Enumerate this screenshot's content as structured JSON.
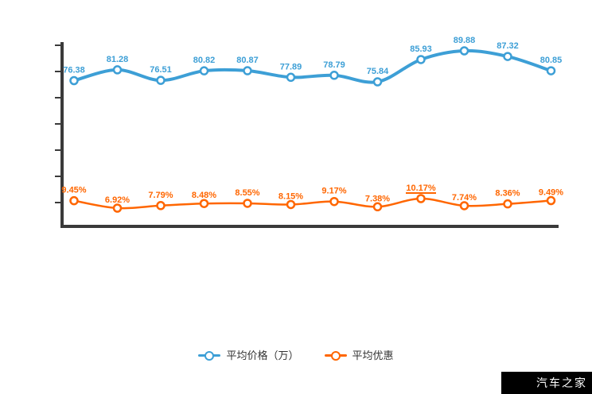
{
  "watermark": {
    "text": "汽车之家"
  },
  "legend": {
    "position": "bottom"
  },
  "chart_data": {
    "type": "line",
    "title": "",
    "xlabel": "",
    "ylabel": "",
    "point_count": 12,
    "x_tick_labels_visible": false,
    "y_tick_labels_visible": false,
    "grid": false,
    "legend_position": "bottom",
    "axis_color": "#3a3a3a",
    "y_tick_count": 7,
    "series": [
      {
        "name": "平均价格（万）",
        "color": "#3d9fd6",
        "marker": "empty-circle",
        "values": [
          76.38,
          81.28,
          76.51,
          80.82,
          80.87,
          77.89,
          78.79,
          75.84,
          85.93,
          89.88,
          87.32,
          80.85
        ],
        "labels": [
          "76.38",
          "81.28",
          "76.51",
          "80.82",
          "80.87",
          "77.89",
          "78.79",
          "75.84",
          "85.93",
          "89.88",
          "87.32",
          "80.85"
        ]
      },
      {
        "name": "平均优惠",
        "color": "#ff6600",
        "marker": "empty-circle",
        "values": [
          9.45,
          6.92,
          7.79,
          8.48,
          8.55,
          8.15,
          9.17,
          7.38,
          10.17,
          7.74,
          8.36,
          9.49
        ],
        "labels": [
          "9.45%",
          "6.92%",
          "7.79%",
          "8.48%",
          "8.55%",
          "8.15%",
          "9.17%",
          "7.38%",
          "10.17%",
          "7.74%",
          "8.36%",
          "9.49%"
        ],
        "emphasized_label_index": 8
      }
    ]
  }
}
